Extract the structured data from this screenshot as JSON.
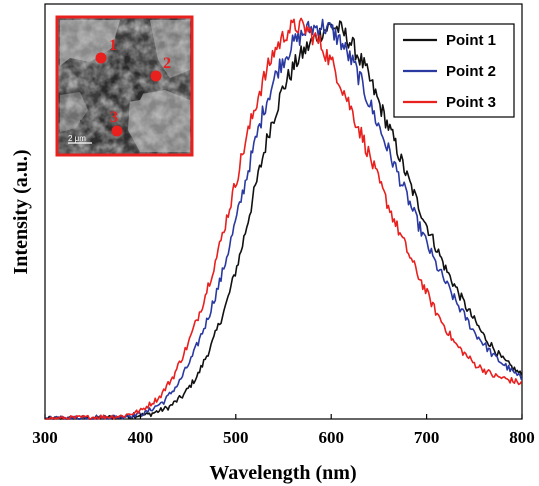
{
  "chart_data": {
    "type": "line",
    "xlabel": "Wavelength (nm)",
    "ylabel": "Intensity (a.u.)",
    "xlim": [
      300,
      800
    ],
    "ylim": [
      0,
      1.05
    ],
    "x_ticks": [
      "300",
      "400",
      "500",
      "600",
      "700",
      "800"
    ],
    "grid": false,
    "legend_position": "top-right",
    "series": [
      {
        "name": "Point 1",
        "color": "#111111",
        "points": [
          [
            300,
            0.0
          ],
          [
            380,
            0.005
          ],
          [
            410,
            0.012
          ],
          [
            430,
            0.03
          ],
          [
            445,
            0.06
          ],
          [
            460,
            0.11
          ],
          [
            475,
            0.19
          ],
          [
            490,
            0.29
          ],
          [
            505,
            0.42
          ],
          [
            520,
            0.58
          ],
          [
            535,
            0.73
          ],
          [
            550,
            0.84
          ],
          [
            565,
            0.91
          ],
          [
            580,
            0.955
          ],
          [
            590,
            0.98
          ],
          [
            600,
            0.995
          ],
          [
            610,
            0.985
          ],
          [
            620,
            0.955
          ],
          [
            635,
            0.89
          ],
          [
            650,
            0.8
          ],
          [
            665,
            0.71
          ],
          [
            680,
            0.61
          ],
          [
            700,
            0.49
          ],
          [
            720,
            0.38
          ],
          [
            740,
            0.29
          ],
          [
            760,
            0.21
          ],
          [
            780,
            0.15
          ],
          [
            800,
            0.11
          ]
        ]
      },
      {
        "name": "Point 2",
        "color": "#2b3aa0",
        "points": [
          [
            300,
            0.0
          ],
          [
            380,
            0.006
          ],
          [
            405,
            0.015
          ],
          [
            425,
            0.045
          ],
          [
            440,
            0.09
          ],
          [
            455,
            0.16
          ],
          [
            470,
            0.25
          ],
          [
            485,
            0.36
          ],
          [
            500,
            0.5
          ],
          [
            515,
            0.65
          ],
          [
            530,
            0.79
          ],
          [
            545,
            0.89
          ],
          [
            560,
            0.95
          ],
          [
            575,
            0.985
          ],
          [
            590,
            0.995
          ],
          [
            600,
            0.985
          ],
          [
            610,
            0.955
          ],
          [
            625,
            0.89
          ],
          [
            640,
            0.8
          ],
          [
            655,
            0.71
          ],
          [
            670,
            0.62
          ],
          [
            690,
            0.5
          ],
          [
            710,
            0.39
          ],
          [
            730,
            0.3
          ],
          [
            750,
            0.22
          ],
          [
            770,
            0.16
          ],
          [
            785,
            0.13
          ],
          [
            800,
            0.1
          ]
        ]
      },
      {
        "name": "Point 3",
        "color": "#e8201e",
        "points": [
          [
            300,
            0.0
          ],
          [
            380,
            0.007
          ],
          [
            400,
            0.02
          ],
          [
            420,
            0.055
          ],
          [
            435,
            0.11
          ],
          [
            450,
            0.19
          ],
          [
            465,
            0.29
          ],
          [
            480,
            0.41
          ],
          [
            495,
            0.55
          ],
          [
            510,
            0.7
          ],
          [
            525,
            0.83
          ],
          [
            540,
            0.93
          ],
          [
            555,
            0.985
          ],
          [
            565,
            0.995
          ],
          [
            575,
            0.985
          ],
          [
            590,
            0.945
          ],
          [
            605,
            0.88
          ],
          [
            620,
            0.79
          ],
          [
            635,
            0.7
          ],
          [
            650,
            0.6
          ],
          [
            670,
            0.48
          ],
          [
            690,
            0.37
          ],
          [
            710,
            0.27
          ],
          [
            730,
            0.19
          ],
          [
            750,
            0.14
          ],
          [
            770,
            0.11
          ],
          [
            800,
            0.09
          ]
        ]
      }
    ]
  },
  "inset": {
    "point_labels": [
      "1",
      "2",
      "3"
    ],
    "scale_text": "2 μm"
  }
}
